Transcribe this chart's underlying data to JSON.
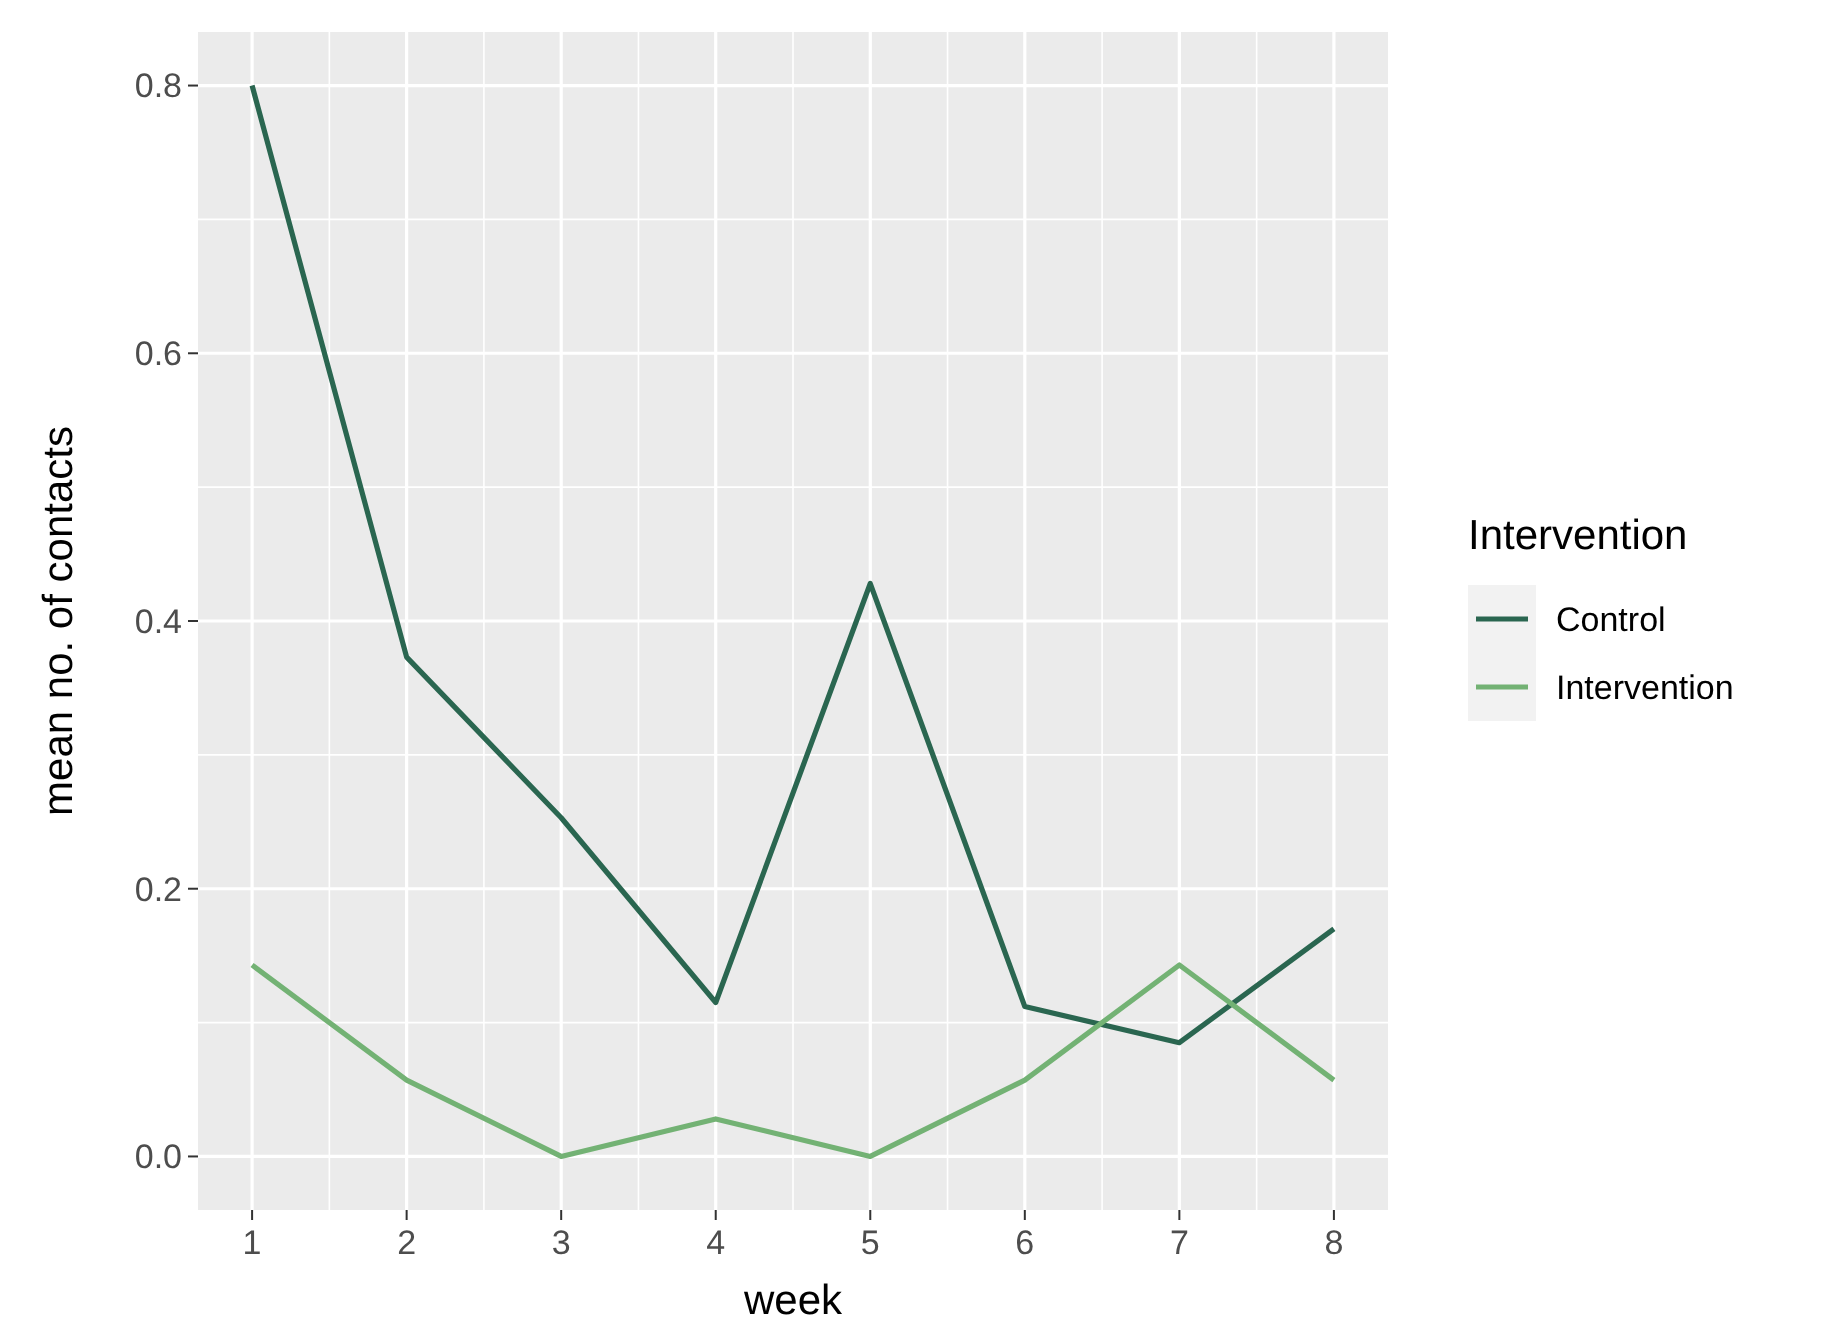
{
  "chart_data": {
    "type": "line",
    "xlabel": "week",
    "ylabel": "mean no. of contacts",
    "legend_title": "Intervention",
    "legend": "right",
    "grid": true,
    "x": [
      1,
      2,
      3,
      4,
      5,
      6,
      7,
      8
    ],
    "xlim": [
      0.65,
      8.35
    ],
    "xticks": [
      1,
      2,
      3,
      4,
      5,
      6,
      7,
      8
    ],
    "ylim": [
      -0.04,
      0.84
    ],
    "yticks": [
      {
        "value": 0,
        "label": "0.0"
      },
      0.2,
      0.4,
      0.6,
      0.8
    ],
    "series": [
      {
        "name": "Control",
        "color": "#2a6650",
        "values": [
          0.8,
          0.373,
          0.253,
          0.115,
          0.428,
          0.112,
          0.085,
          0.17
        ]
      },
      {
        "name": "Intervention",
        "color": "#73b274",
        "values": [
          0.143,
          0.057,
          0,
          0.028,
          0,
          0.057,
          0.143,
          0.057
        ]
      }
    ]
  }
}
